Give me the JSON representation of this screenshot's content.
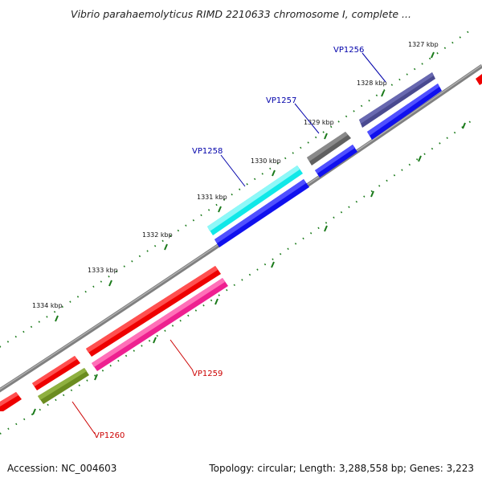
{
  "title": "Vibrio parahaemolyticus RIMD 2210633 chromosome I, complete ...",
  "footer": {
    "accession": "Accession: NC_004603",
    "summary": "Topology: circular; Length: 3,288,558 bp; Genes: 3,223"
  },
  "ticks": [
    "1327 kbp",
    "1328 kbp",
    "1329 kbp",
    "1330 kbp",
    "1331 kbp",
    "1332 kbp",
    "1333 kbp",
    "1334 kbp"
  ],
  "genes": [
    {
      "label": "VP1256",
      "color": "#0000aa"
    },
    {
      "label": "VP1257",
      "color": "#0000aa"
    },
    {
      "label": "VP1258",
      "color": "#0000aa"
    },
    {
      "label": "VP1259",
      "color": "#cc0000"
    },
    {
      "label": "VP1260",
      "color": "#cc0000"
    }
  ],
  "colors": {
    "backbone": "#808080",
    "tick": "#1a7a1a",
    "red": "#ee0000",
    "blue": "#1010ee",
    "slate": "#4a4a90",
    "gray": "#606060",
    "cyan": "#10e8e8",
    "pink": "#ee2090",
    "olive": "#6b8c20"
  }
}
